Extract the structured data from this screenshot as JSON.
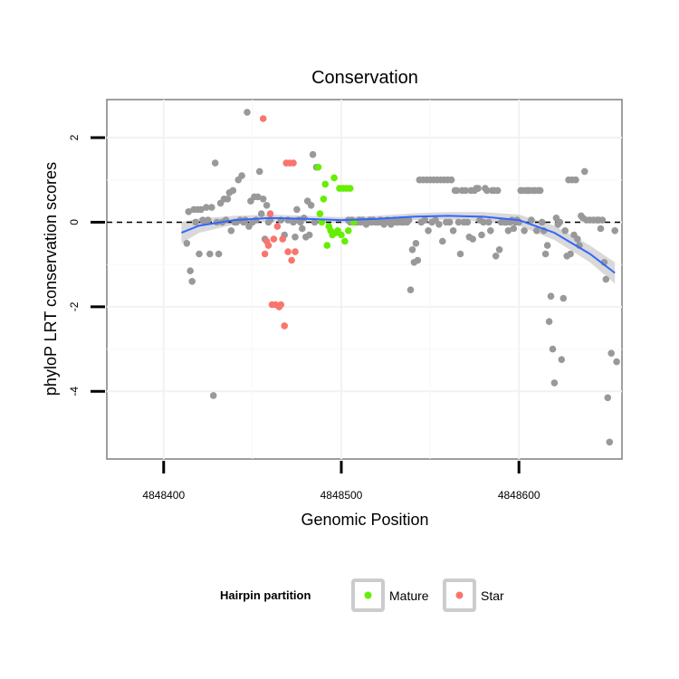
{
  "chart_data": {
    "type": "scatter",
    "title": "Conservation",
    "xlabel": "Genomic Position",
    "ylabel": "phyloP LRT conservation scores",
    "x_reversed": true,
    "xlim": [
      4848368,
      4848658
    ],
    "ylim": [
      -5.6,
      2.9
    ],
    "x_ticks": [
      {
        "value": 4848600,
        "label": "4848600"
      },
      {
        "value": 4848500,
        "label": "4848500"
      },
      {
        "value": 4848400,
        "label": "4848400"
      }
    ],
    "y_ticks": [
      {
        "value": 2,
        "label": "2"
      },
      {
        "value": 0,
        "label": "0"
      },
      {
        "value": -2,
        "label": "-2"
      },
      {
        "value": -4,
        "label": "-4"
      }
    ],
    "reference_line": {
      "y": 0,
      "style": "dashed"
    },
    "grid": true,
    "legend": {
      "title": "Hairpin partition",
      "position": "bottom",
      "entries": [
        {
          "name": "Mature",
          "color": "#66ee00"
        },
        {
          "name": "Star",
          "color": "#f8766d"
        }
      ]
    },
    "colors": {
      "other": "#999999",
      "Mature": "#66ee00",
      "Star": "#f8766d",
      "smooth": "#3366ff",
      "band": "#cccccc"
    },
    "series": [
      {
        "name": "",
        "group": "other",
        "points": [
          [
            4848655,
            -3.3
          ],
          [
            4848654,
            -0.2
          ],
          [
            4848652,
            -3.1
          ],
          [
            4848651,
            -5.2
          ],
          [
            4848650,
            -4.15
          ],
          [
            4848649,
            -1.35
          ],
          [
            4848648,
            -0.95
          ],
          [
            4848647,
            0.05
          ],
          [
            4848646,
            -0.15
          ],
          [
            4848645,
            0.05
          ],
          [
            4848644,
            0.05
          ],
          [
            4848642,
            0.05
          ],
          [
            4848640,
            0.05
          ],
          [
            4848638,
            0.05
          ],
          [
            4848637,
            1.2
          ],
          [
            4848636,
            0.1
          ],
          [
            4848635,
            0.15
          ],
          [
            4848634,
            -0.55
          ],
          [
            4848633,
            -0.4
          ],
          [
            4848632,
            1.0
          ],
          [
            4848631,
            -0.3
          ],
          [
            4848630,
            1.0
          ],
          [
            4848629,
            -0.75
          ],
          [
            4848628,
            1.0
          ],
          [
            4848627,
            -0.8
          ],
          [
            4848626,
            -0.2
          ],
          [
            4848625,
            -1.8
          ],
          [
            4848624,
            -3.25
          ],
          [
            4848623,
            0.0
          ],
          [
            4848622,
            -0.05
          ],
          [
            4848621,
            0.1
          ],
          [
            4848620,
            -3.8
          ],
          [
            4848619,
            -3.0
          ],
          [
            4848618,
            -1.75
          ],
          [
            4848617,
            -2.35
          ],
          [
            4848616,
            -0.55
          ],
          [
            4848615,
            -0.75
          ],
          [
            4848614,
            -0.2
          ],
          [
            4848613,
            0.0
          ],
          [
            4848612,
            0.75
          ],
          [
            4848611,
            0.75
          ],
          [
            4848610,
            -0.2
          ],
          [
            4848609,
            0.75
          ],
          [
            4848608,
            0.75
          ],
          [
            4848607,
            0.05
          ],
          [
            4848606,
            0.75
          ],
          [
            4848605,
            0.75
          ],
          [
            4848604,
            0.75
          ],
          [
            4848603,
            -0.2
          ],
          [
            4848602,
            0.75
          ],
          [
            4848601,
            0.75
          ],
          [
            4848600,
            0.0
          ],
          [
            4848599,
            0.05
          ],
          [
            4848598,
            0.0
          ],
          [
            4848597,
            -0.15
          ],
          [
            4848596,
            0.05
          ],
          [
            4848595,
            0.0
          ],
          [
            4848594,
            -0.2
          ],
          [
            4848593,
            0.0
          ],
          [
            4848592,
            0.0
          ],
          [
            4848590,
            0.0
          ],
          [
            4848589,
            -0.65
          ],
          [
            4848588,
            0.75
          ],
          [
            4848587,
            -0.8
          ],
          [
            4848586,
            0.75
          ],
          [
            4848585,
            0.75
          ],
          [
            4848584,
            -0.2
          ],
          [
            4848583,
            0.0
          ],
          [
            4848582,
            0.75
          ],
          [
            4848581,
            0.8
          ],
          [
            4848580,
            0.0
          ],
          [
            4848579,
            -0.3
          ],
          [
            4848578,
            0.05
          ],
          [
            4848577,
            0.8
          ],
          [
            4848576,
            0.8
          ],
          [
            4848575,
            0.75
          ],
          [
            4848574,
            -0.4
          ],
          [
            4848573,
            0.75
          ],
          [
            4848572,
            -0.35
          ],
          [
            4848571,
            0.0
          ],
          [
            4848570,
            0.75
          ],
          [
            4848569,
            0.0
          ],
          [
            4848568,
            0.75
          ],
          [
            4848567,
            -0.75
          ],
          [
            4848566,
            0.0
          ],
          [
            4848565,
            0.75
          ],
          [
            4848564,
            0.75
          ],
          [
            4848563,
            -0.2
          ],
          [
            4848562,
            1.0
          ],
          [
            4848561,
            0.0
          ],
          [
            4848560,
            1.0
          ],
          [
            4848559,
            0.0
          ],
          [
            4848558,
            1.0
          ],
          [
            4848557,
            -0.45
          ],
          [
            4848556,
            1.0
          ],
          [
            4848555,
            -0.05
          ],
          [
            4848554,
            1.0
          ],
          [
            4848553,
            0.05
          ],
          [
            4848552,
            1.0
          ],
          [
            4848551,
            0.0
          ],
          [
            4848550,
            1.0
          ],
          [
            4848549,
            -0.2
          ],
          [
            4848548,
            1.0
          ],
          [
            4848547,
            0.05
          ],
          [
            4848546,
            1.0
          ],
          [
            4848545,
            0.0
          ],
          [
            4848544,
            1.0
          ],
          [
            4848543,
            -0.9
          ],
          [
            4848542,
            -0.5
          ],
          [
            4848541,
            -0.95
          ],
          [
            4848540,
            -0.65
          ],
          [
            4848539,
            -1.6
          ],
          [
            4848538,
            0.05
          ],
          [
            4848537,
            0.0
          ],
          [
            4848536,
            0.05
          ],
          [
            4848535,
            0.0
          ],
          [
            4848534,
            0.0
          ],
          [
            4848533,
            0.05
          ],
          [
            4848532,
            0.0
          ],
          [
            4848531,
            0.0
          ],
          [
            4848530,
            0.05
          ],
          [
            4848529,
            0.0
          ],
          [
            4848528,
            -0.05
          ],
          [
            4848527,
            0.0
          ],
          [
            4848526,
            0.05
          ],
          [
            4848525,
            0.0
          ],
          [
            4848524,
            -0.05
          ],
          [
            4848523,
            0.0
          ],
          [
            4848522,
            0.05
          ],
          [
            4848521,
            0.0
          ],
          [
            4848520,
            0.0
          ],
          [
            4848519,
            0.0
          ],
          [
            4848518,
            0.05
          ],
          [
            4848517,
            0.0
          ],
          [
            4848516,
            0.05
          ],
          [
            4848515,
            0.0
          ],
          [
            4848514,
            -0.05
          ],
          [
            4848513,
            0.0
          ],
          [
            4848512,
            0.05
          ],
          [
            4848511,
            0.0
          ],
          [
            4848510,
            0.05
          ],
          [
            4848509,
            0.0
          ],
          [
            4848508,
            0.0
          ],
          [
            4848507,
            0.0
          ],
          [
            4848506,
            0.05
          ],
          [
            4848505,
            0.0
          ],
          [
            4848504,
            0.05
          ],
          [
            4848486,
            1.3
          ],
          [
            4848485,
            0.0
          ],
          [
            4848484,
            1.6
          ],
          [
            4848483,
            0.4
          ],
          [
            4848482,
            -0.3
          ],
          [
            4848481,
            0.5
          ],
          [
            4848480,
            -0.35
          ],
          [
            4848479,
            0.1
          ],
          [
            4848478,
            -0.15
          ],
          [
            4848477,
            0.0
          ],
          [
            4848476,
            0.05
          ],
          [
            4848475,
            0.3
          ],
          [
            4848474,
            -0.35
          ],
          [
            4848473,
            0.0
          ],
          [
            4848470,
            0.05
          ],
          [
            4848468,
            -0.3
          ],
          [
            4848466,
            0.05
          ],
          [
            4848460,
            0.05
          ],
          [
            4848459,
            0.0
          ],
          [
            4848458,
            0.4
          ],
          [
            4848457,
            -0.4
          ],
          [
            4848456,
            0.55
          ],
          [
            4848455,
            0.2
          ],
          [
            4848454,
            1.2
          ],
          [
            4848453,
            0.6
          ],
          [
            4848452,
            0.05
          ],
          [
            4848451,
            0.6
          ],
          [
            4848450,
            0.0
          ],
          [
            4848449,
            0.5
          ],
          [
            4848448,
            -0.1
          ],
          [
            4848447,
            2.6
          ],
          [
            4848446,
            0.05
          ],
          [
            4848445,
            0.0
          ],
          [
            4848444,
            1.1
          ],
          [
            4848443,
            0.05
          ],
          [
            4848442,
            1.0
          ],
          [
            4848441,
            0.0
          ],
          [
            4848440,
            0.0
          ],
          [
            4848439,
            0.75
          ],
          [
            4848438,
            -0.2
          ],
          [
            4848437,
            0.7
          ],
          [
            4848436,
            0.55
          ],
          [
            4848435,
            0.05
          ],
          [
            4848434,
            0.55
          ],
          [
            4848433,
            0.0
          ],
          [
            4848432,
            0.45
          ],
          [
            4848431,
            -0.75
          ],
          [
            4848430,
            0.0
          ],
          [
            4848429,
            1.4
          ],
          [
            4848428,
            -4.1
          ],
          [
            4848427,
            0.35
          ],
          [
            4848426,
            -0.75
          ],
          [
            4848425,
            0.05
          ],
          [
            4848424,
            0.35
          ],
          [
            4848423,
            0.0
          ],
          [
            4848422,
            0.05
          ],
          [
            4848421,
            0.3
          ],
          [
            4848420,
            -0.75
          ],
          [
            4848419,
            0.3
          ],
          [
            4848418,
            0.0
          ],
          [
            4848417,
            0.3
          ],
          [
            4848416,
            -1.4
          ],
          [
            4848415,
            -1.15
          ],
          [
            4848414,
            0.25
          ],
          [
            4848413,
            -0.5
          ]
        ]
      },
      {
        "name": "Mature",
        "group": "Mature",
        "points": [
          [
            4848507,
            0.0
          ],
          [
            4848505,
            0.8
          ],
          [
            4848504,
            -0.2
          ],
          [
            4848503,
            0.8
          ],
          [
            4848502,
            -0.45
          ],
          [
            4848501,
            0.8
          ],
          [
            4848500,
            -0.3
          ],
          [
            4848499,
            0.8
          ],
          [
            4848498,
            -0.2
          ],
          [
            4848497,
            -0.25
          ],
          [
            4848496,
            1.05
          ],
          [
            4848495,
            -0.3
          ],
          [
            4848494,
            -0.2
          ],
          [
            4848493,
            -0.1
          ],
          [
            4848492,
            -0.55
          ],
          [
            4848491,
            0.9
          ],
          [
            4848490,
            0.55
          ],
          [
            4848489,
            0.0
          ],
          [
            4848488,
            0.2
          ],
          [
            4848487,
            1.3
          ]
        ]
      },
      {
        "name": "Star",
        "group": "Star",
        "points": [
          [
            4848474,
            -0.7
          ],
          [
            4848473,
            1.4
          ],
          [
            4848472,
            -0.9
          ],
          [
            4848471,
            1.4
          ],
          [
            4848470,
            -0.7
          ],
          [
            4848469,
            1.4
          ],
          [
            4848468,
            -2.45
          ],
          [
            4848467,
            -0.4
          ],
          [
            4848466,
            -1.95
          ],
          [
            4848465,
            -2.0
          ],
          [
            4848464,
            -0.1
          ],
          [
            4848463,
            -1.95
          ],
          [
            4848462,
            -0.4
          ],
          [
            4848461,
            -1.95
          ],
          [
            4848460,
            0.2
          ],
          [
            4848459,
            -0.55
          ],
          [
            4848458,
            -0.45
          ],
          [
            4848457,
            -0.75
          ],
          [
            4848456,
            2.45
          ]
        ]
      }
    ],
    "smooth_line": {
      "x": [
        4848654,
        4848640,
        4848620,
        4848600,
        4848580,
        4848560,
        4848540,
        4848520,
        4848500,
        4848480,
        4848460,
        4848440,
        4848420,
        4848410
      ],
      "y": [
        -1.2,
        -0.75,
        -0.25,
        0.05,
        0.13,
        0.15,
        0.13,
        0.08,
        0.05,
        0.08,
        0.1,
        0.05,
        -0.08,
        -0.25
      ],
      "lower": [
        -1.45,
        -0.95,
        -0.42,
        -0.08,
        0.02,
        0.06,
        0.05,
        0.01,
        -0.02,
        0.01,
        0.02,
        -0.05,
        -0.25,
        -0.5
      ],
      "upper": [
        -0.95,
        -0.55,
        -0.08,
        0.18,
        0.24,
        0.24,
        0.21,
        0.15,
        0.12,
        0.15,
        0.18,
        0.15,
        0.09,
        0.0
      ]
    }
  }
}
